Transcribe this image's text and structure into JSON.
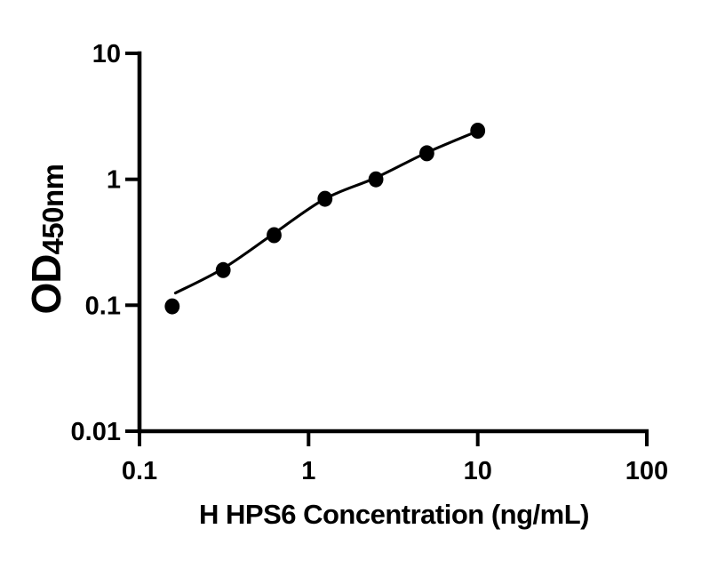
{
  "figure": {
    "background_color": "#ffffff",
    "ink_color": "#000000"
  },
  "chart_data": {
    "type": "scatter",
    "title": "",
    "xlabel": "H HPS6 Concentration (ng/mL)",
    "ylabel_main": "OD",
    "ylabel_subscript": "450nm",
    "x_scale": "log",
    "y_scale": "log",
    "xlim": [
      0.1,
      100
    ],
    "ylim": [
      0.01,
      10
    ],
    "grid": false,
    "legend": false,
    "x_ticks": [
      {
        "value": 0.1,
        "label": "0.1"
      },
      {
        "value": 1,
        "label": "1"
      },
      {
        "value": 10,
        "label": "10"
      },
      {
        "value": 100,
        "label": "100"
      }
    ],
    "y_ticks": [
      {
        "value": 0.01,
        "label": "0.01"
      },
      {
        "value": 0.1,
        "label": "0.1"
      },
      {
        "value": 1,
        "label": "1"
      },
      {
        "value": 10,
        "label": "10"
      }
    ],
    "series": [
      {
        "marker": "filled-circle",
        "color": "#000000",
        "points": [
          {
            "x": 0.156,
            "y": 0.098
          },
          {
            "x": 0.3125,
            "y": 0.19
          },
          {
            "x": 0.625,
            "y": 0.36
          },
          {
            "x": 1.25,
            "y": 0.7
          },
          {
            "x": 2.5,
            "y": 1.0
          },
          {
            "x": 5,
            "y": 1.61
          },
          {
            "x": 10,
            "y": 2.43
          }
        ]
      }
    ],
    "fit_line": [
      {
        "x": 0.163,
        "y": 0.125
      },
      {
        "x": 0.3125,
        "y": 0.196
      },
      {
        "x": 0.625,
        "y": 0.372
      },
      {
        "x": 1.25,
        "y": 0.7
      },
      {
        "x": 2.5,
        "y": 1.03
      },
      {
        "x": 5,
        "y": 1.63
      },
      {
        "x": 10,
        "y": 2.41
      }
    ]
  }
}
